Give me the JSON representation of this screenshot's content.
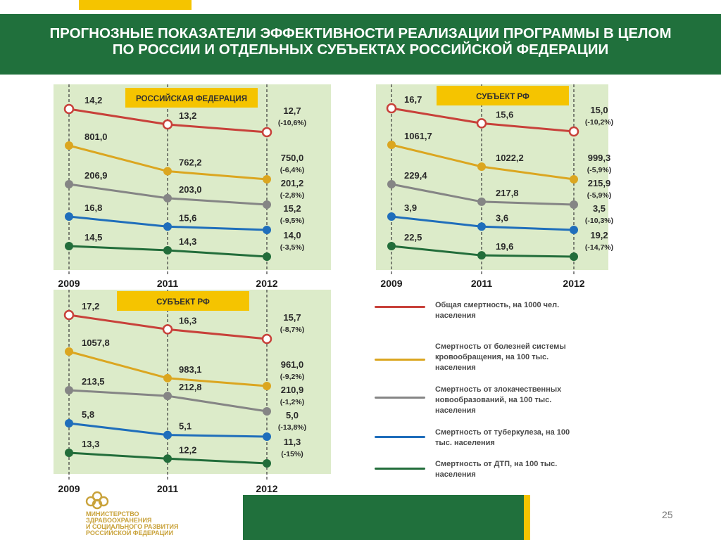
{
  "title": {
    "line1": "ПРОГНОЗНЫЕ ПОКАЗАТЕЛИ ЭФФЕКТИВНОСТИ РЕАЛИЗАЦИИ ПРОГРАММЫ В ЦЕЛОМ",
    "line2": "ПО РОССИИ И ОТДЕЛЬНЫХ СУБЪЕКТАХ РОССИЙСКОЙ ФЕДЕРАЦИИ"
  },
  "colors": {
    "background": "#ffffff",
    "header": "#20703c",
    "accent": "#f5c400",
    "panel": "#dcebc9",
    "general": "#c8413a",
    "circulatory": "#dba620",
    "oncology": "#858585",
    "tuberculosis": "#1f6ebb",
    "road": "#226d3a"
  },
  "chart_data": [
    {
      "type": "line",
      "title": "РОССИЙСКАЯ ФЕДЕРАЦИЯ",
      "x": [
        "2009",
        "2011",
        "2012"
      ],
      "series": [
        {
          "key": "general",
          "values": [
            14.2,
            13.2,
            12.7
          ],
          "labels": [
            "14,2",
            "13,2",
            "12,7"
          ],
          "change": "(-10,6%)",
          "hollow": true
        },
        {
          "key": "circulatory",
          "values": [
            801.0,
            762.2,
            750.0
          ],
          "labels": [
            "801,0",
            "762,2",
            "750,0"
          ],
          "change": "(-6,4%)"
        },
        {
          "key": "oncology",
          "values": [
            206.9,
            203.0,
            201.2
          ],
          "labels": [
            "206,9",
            "203,0",
            "201,2"
          ],
          "change": "(-2,8%)"
        },
        {
          "key": "tuberculosis",
          "values": [
            16.8,
            15.6,
            15.2
          ],
          "labels": [
            "16,8",
            "15,6",
            "15,2"
          ],
          "change": "(-9,5%)"
        },
        {
          "key": "road",
          "values": [
            14.5,
            14.3,
            14.0
          ],
          "labels": [
            "14,5",
            "14,3",
            "14,0"
          ],
          "change": "(-3,5%)"
        }
      ]
    },
    {
      "type": "line",
      "title": "СУБЪЕКТ РФ",
      "x": [
        "2009",
        "2011",
        "2012"
      ],
      "series": [
        {
          "key": "general",
          "values": [
            16.7,
            15.6,
            15.0
          ],
          "labels": [
            "16,7",
            "15,6",
            "15,0"
          ],
          "change": "(-10,2%)",
          "hollow": true
        },
        {
          "key": "circulatory",
          "values": [
            1061.7,
            1022.2,
            999.3
          ],
          "labels": [
            "1061,7",
            "1022,2",
            "999,3"
          ],
          "change": "(-5,9%)"
        },
        {
          "key": "oncology",
          "values": [
            229.4,
            217.8,
            215.9
          ],
          "labels": [
            "229,4",
            "217,8",
            "215,9"
          ],
          "change": "(-5,9%)"
        },
        {
          "key": "tuberculosis",
          "values": [
            3.9,
            3.6,
            3.5
          ],
          "labels": [
            "3,9",
            "3,6",
            "3,5"
          ],
          "change": "(-10,3%)"
        },
        {
          "key": "road",
          "values": [
            22.5,
            19.6,
            19.2
          ],
          "labels": [
            "22,5",
            "19,6",
            "19,2"
          ],
          "change": "(-14,7%)"
        }
      ]
    },
    {
      "type": "line",
      "title": "СУБЪЕКТ РФ",
      "x": [
        "2009",
        "2011",
        "2012"
      ],
      "series": [
        {
          "key": "general",
          "values": [
            17.2,
            16.3,
            15.7
          ],
          "labels": [
            "17,2",
            "16,3",
            "15,7"
          ],
          "change": "(-8,7%)",
          "hollow": true
        },
        {
          "key": "circulatory",
          "values": [
            1057.8,
            983.1,
            961.0
          ],
          "labels": [
            "1057,8",
            "983,1",
            "961,0"
          ],
          "change": "(-9,2%)"
        },
        {
          "key": "oncology",
          "values": [
            213.5,
            212.8,
            210.9
          ],
          "labels": [
            "213,5",
            "212,8",
            "210,9"
          ],
          "change": "(-1,2%)"
        },
        {
          "key": "tuberculosis",
          "values": [
            5.8,
            5.1,
            5.0
          ],
          "labels": [
            "5,8",
            "5,1",
            "5,0"
          ],
          "change": "(-13,8%)"
        },
        {
          "key": "road",
          "values": [
            13.3,
            12.2,
            11.3
          ],
          "labels": [
            "13,3",
            "12,2",
            "11,3"
          ],
          "change": "(-15%)"
        }
      ]
    }
  ],
  "legend": [
    {
      "key": "general",
      "label": "Общая смертность, на 1000 чел. населения"
    },
    {
      "key": "circulatory",
      "label": "Смертность от болезней системы кровообращения, на 100 тыс. населения"
    },
    {
      "key": "oncology",
      "label": "Смертность от злокачественных новообразований, на 100 тыс. населения"
    },
    {
      "key": "tuberculosis",
      "label": "Смертность от туберкулеза, на 100 тыс. населения"
    },
    {
      "key": "road",
      "label": "Смертность от ДТП, на 100 тыс. населения"
    }
  ],
  "footer": {
    "ministry": [
      "МИНИСТЕРСТВО",
      "ЗДРАВООХРАНЕНИЯ",
      "И СОЦИАЛЬНОГО РАЗВИТИЯ",
      "РОССИЙСКОЙ ФЕДЕРАЦИИ"
    ],
    "page_number": "25"
  }
}
